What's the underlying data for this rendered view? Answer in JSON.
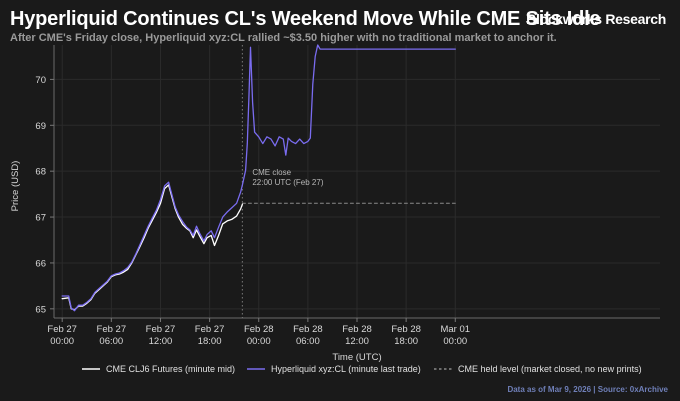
{
  "header": {
    "title": "Hyperliquid Continues CL's Weekend Move While CME Sits Idle",
    "brand": "Blockworks Research",
    "subtitle": "After CME's Friday close, Hyperliquid xyz:CL rallied ~$3.50 higher with no traditional market to anchor it."
  },
  "footer": {
    "source": "Data as of Mar 9, 2026 | Source: 0xArchive"
  },
  "colors": {
    "background": "#1a1a1a",
    "hyperliquid": "#7a6cf0",
    "cme": "#ffffff",
    "held": "#8a8a8a",
    "grid": "#2b2b2b",
    "axis_text": "#d8d8d8"
  },
  "chart_data": {
    "type": "line",
    "title": "Hyperliquid Continues CL's Weekend Move While CME Sits Idle",
    "xlabel": "Time (UTC)",
    "ylabel": "Price (USD)",
    "x_unit": "hours since Feb 27 00:00 UTC",
    "xlim": [
      -1,
      73
    ],
    "ylim": [
      64.8,
      70.75
    ],
    "grid": true,
    "x_ticks": [
      {
        "x": 0,
        "line1": "Feb 27",
        "line2": "00:00"
      },
      {
        "x": 6,
        "line1": "Feb 27",
        "line2": "06:00"
      },
      {
        "x": 12,
        "line1": "Feb 27",
        "line2": "12:00"
      },
      {
        "x": 18,
        "line1": "Feb 27",
        "line2": "18:00"
      },
      {
        "x": 24,
        "line1": "Feb 28",
        "line2": "00:00"
      },
      {
        "x": 30,
        "line1": "Feb 28",
        "line2": "06:00"
      },
      {
        "x": 36,
        "line1": "Feb 28",
        "line2": "12:00"
      },
      {
        "x": 42,
        "line1": "Feb 28",
        "line2": "18:00"
      },
      {
        "x": 48,
        "line1": "Mar 01",
        "line2": "00:00"
      }
    ],
    "y_ticks": [
      65,
      66,
      67,
      68,
      69,
      70
    ],
    "series": [
      {
        "name": "CME CLJ6 Futures (minute mid)",
        "style": "solid",
        "color": "#ffffff",
        "points": [
          [
            0,
            65.22
          ],
          [
            0.8,
            65.24
          ],
          [
            1.1,
            65.0
          ],
          [
            1.5,
            64.98
          ],
          [
            2,
            65.06
          ],
          [
            2.5,
            65.06
          ],
          [
            3,
            65.12
          ],
          [
            3.5,
            65.2
          ],
          [
            4,
            65.34
          ],
          [
            4.5,
            65.42
          ],
          [
            5,
            65.5
          ],
          [
            5.5,
            65.58
          ],
          [
            6,
            65.7
          ],
          [
            6.5,
            65.74
          ],
          [
            7,
            65.76
          ],
          [
            7.5,
            65.8
          ],
          [
            8,
            65.86
          ],
          [
            8.5,
            66.0
          ],
          [
            9,
            66.18
          ],
          [
            9.5,
            66.36
          ],
          [
            10,
            66.55
          ],
          [
            10.5,
            66.76
          ],
          [
            11,
            66.93
          ],
          [
            11.5,
            67.1
          ],
          [
            12,
            67.3
          ],
          [
            12.5,
            67.62
          ],
          [
            13,
            67.7
          ],
          [
            13.3,
            67.5
          ],
          [
            13.8,
            67.18
          ],
          [
            14.2,
            67.0
          ],
          [
            14.7,
            66.84
          ],
          [
            15.2,
            66.75
          ],
          [
            15.6,
            66.7
          ],
          [
            16,
            66.55
          ],
          [
            16.4,
            66.72
          ],
          [
            16.8,
            66.58
          ],
          [
            17.3,
            66.42
          ],
          [
            17.7,
            66.55
          ],
          [
            18.2,
            66.6
          ],
          [
            18.6,
            66.38
          ],
          [
            19.1,
            66.6
          ],
          [
            19.6,
            66.85
          ],
          [
            20.2,
            66.92
          ],
          [
            20.7,
            66.95
          ],
          [
            21.3,
            67.02
          ],
          [
            21.8,
            67.18
          ],
          [
            22,
            67.28
          ]
        ]
      },
      {
        "name": "Hyperliquid xyz:CL (minute last trade)",
        "style": "solid",
        "color": "#7a6cf0",
        "points": [
          [
            0,
            65.28
          ],
          [
            0.8,
            65.28
          ],
          [
            1.1,
            65.02
          ],
          [
            1.5,
            64.96
          ],
          [
            2,
            65.08
          ],
          [
            2.5,
            65.08
          ],
          [
            3,
            65.14
          ],
          [
            3.5,
            65.22
          ],
          [
            4,
            65.36
          ],
          [
            4.5,
            65.44
          ],
          [
            5,
            65.52
          ],
          [
            5.5,
            65.6
          ],
          [
            6,
            65.72
          ],
          [
            6.5,
            65.76
          ],
          [
            7,
            65.78
          ],
          [
            7.5,
            65.83
          ],
          [
            8,
            65.9
          ],
          [
            8.5,
            66.02
          ],
          [
            9,
            66.2
          ],
          [
            9.5,
            66.4
          ],
          [
            10,
            66.6
          ],
          [
            10.5,
            66.8
          ],
          [
            11,
            66.98
          ],
          [
            11.5,
            67.15
          ],
          [
            12,
            67.38
          ],
          [
            12.5,
            67.68
          ],
          [
            13,
            67.76
          ],
          [
            13.3,
            67.55
          ],
          [
            13.8,
            67.22
          ],
          [
            14.2,
            67.05
          ],
          [
            14.7,
            66.9
          ],
          [
            15.2,
            66.78
          ],
          [
            15.6,
            66.72
          ],
          [
            16,
            66.6
          ],
          [
            16.4,
            66.8
          ],
          [
            16.8,
            66.64
          ],
          [
            17.3,
            66.48
          ],
          [
            17.7,
            66.62
          ],
          [
            18.2,
            66.7
          ],
          [
            18.6,
            66.55
          ],
          [
            19.1,
            66.78
          ],
          [
            19.6,
            67.0
          ],
          [
            20.2,
            67.12
          ],
          [
            20.7,
            67.2
          ],
          [
            21.3,
            67.3
          ],
          [
            21.8,
            67.55
          ],
          [
            22,
            67.7
          ],
          [
            22.4,
            68.02
          ],
          [
            22.6,
            68.6
          ],
          [
            22.8,
            69.6
          ],
          [
            23,
            70.7
          ],
          [
            23.25,
            69.5
          ],
          [
            23.5,
            68.85
          ],
          [
            24,
            68.75
          ],
          [
            24.5,
            68.6
          ],
          [
            25,
            68.75
          ],
          [
            25.5,
            68.7
          ],
          [
            26,
            68.55
          ],
          [
            26.5,
            68.75
          ],
          [
            27,
            68.7
          ],
          [
            27.3,
            68.35
          ],
          [
            27.6,
            68.72
          ],
          [
            28,
            68.65
          ],
          [
            28.5,
            68.6
          ],
          [
            29,
            68.7
          ],
          [
            29.5,
            68.6
          ],
          [
            30,
            68.65
          ],
          [
            30.3,
            68.72
          ],
          [
            30.6,
            69.9
          ],
          [
            30.9,
            70.5
          ],
          [
            31.2,
            70.75
          ],
          [
            31.5,
            70.66
          ],
          [
            33,
            70.66
          ],
          [
            38,
            70.66
          ],
          [
            43,
            70.66
          ],
          [
            48,
            70.66
          ]
        ]
      },
      {
        "name": "CME held level (market closed, no new prints)",
        "style": "dashed",
        "color": "#8a8a8a",
        "points": [
          [
            22,
            67.3
          ],
          [
            48,
            67.3
          ]
        ]
      }
    ],
    "annotations": [
      {
        "x": 22,
        "y": 67.92,
        "line1": "CME close",
        "line2": "22:00 UTC (Feb 27)"
      }
    ],
    "legend_position": "bottom"
  }
}
